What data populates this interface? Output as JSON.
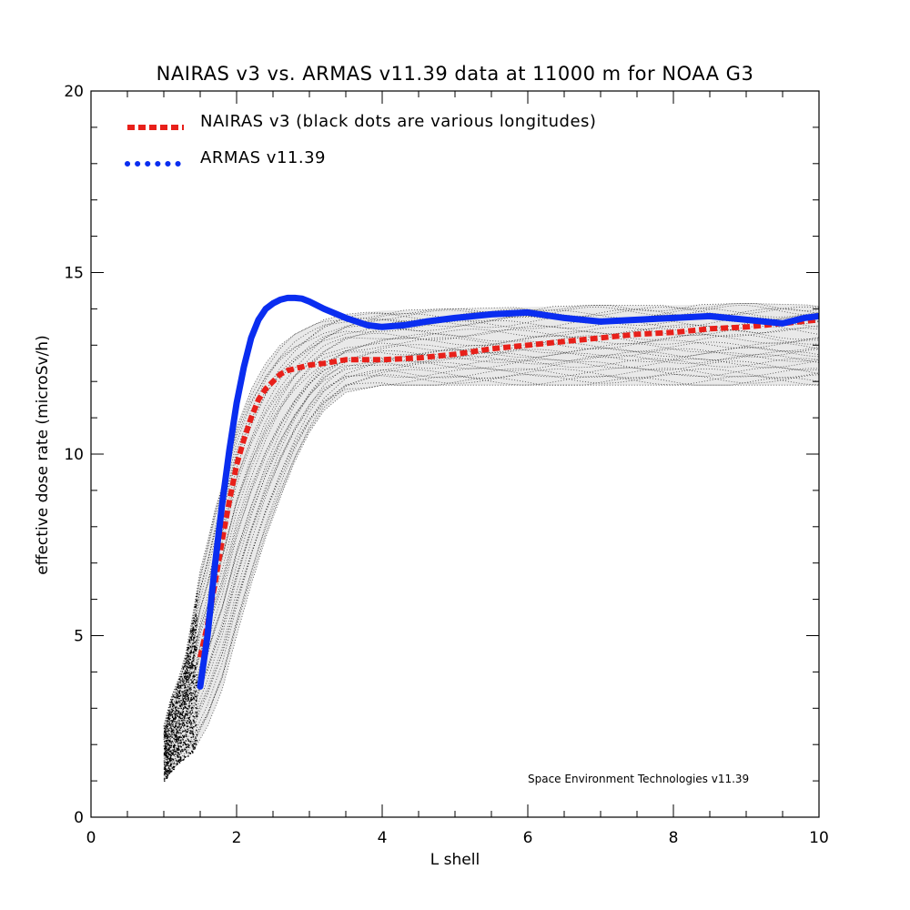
{
  "chart_data": {
    "type": "line",
    "title": "NAIRAS  v3 vs. ARMAS v11.39 data at 11000 m for NOAA G3",
    "xlabel": "L shell",
    "ylabel": "effective dose rate (microSv/h)",
    "xlim": [
      0,
      10
    ],
    "ylim": [
      0,
      20
    ],
    "xticks": [
      0,
      2,
      4,
      6,
      8,
      10
    ],
    "yticks": [
      0,
      5,
      10,
      15,
      20
    ],
    "grid": false,
    "legend_position": "top-left",
    "credit": "Space Environment Technologies v11.39",
    "series": [
      {
        "name": "NAIRAS v3 (black dots are various longitudes)",
        "style": "dashed",
        "color": "#e8201a",
        "x": [
          1.5,
          1.6,
          1.7,
          1.8,
          1.9,
          2.0,
          2.1,
          2.2,
          2.3,
          2.4,
          2.5,
          2.6,
          2.7,
          2.8,
          2.9,
          3.0,
          3.2,
          3.5,
          4.0,
          4.5,
          5.0,
          5.5,
          6.0,
          6.5,
          7.0,
          7.5,
          8.0,
          8.5,
          9.0,
          9.5,
          10.0
        ],
        "y": [
          4.4,
          5.3,
          6.4,
          7.6,
          8.7,
          9.7,
          10.4,
          11.0,
          11.5,
          11.8,
          12.0,
          12.2,
          12.3,
          12.35,
          12.4,
          12.45,
          12.5,
          12.6,
          12.6,
          12.65,
          12.75,
          12.9,
          13.0,
          13.1,
          13.2,
          13.3,
          13.35,
          13.45,
          13.5,
          13.6,
          13.7
        ]
      },
      {
        "name": "ARMAS v11.39",
        "style": "dotted",
        "color": "#0a2df0",
        "x": [
          1.5,
          1.6,
          1.7,
          1.8,
          1.9,
          2.0,
          2.1,
          2.2,
          2.3,
          2.4,
          2.5,
          2.6,
          2.7,
          2.8,
          2.9,
          3.0,
          3.2,
          3.5,
          3.8,
          4.0,
          4.3,
          4.6,
          5.0,
          5.5,
          6.0,
          6.5,
          7.0,
          7.5,
          8.0,
          8.5,
          9.0,
          9.5,
          9.8,
          10.0
        ],
        "y": [
          3.6,
          5.0,
          6.9,
          8.6,
          10.1,
          11.4,
          12.4,
          13.2,
          13.7,
          14.0,
          14.15,
          14.25,
          14.3,
          14.3,
          14.28,
          14.2,
          14.0,
          13.75,
          13.55,
          13.5,
          13.55,
          13.65,
          13.75,
          13.85,
          13.9,
          13.75,
          13.65,
          13.7,
          13.75,
          13.8,
          13.7,
          13.6,
          13.75,
          13.8
        ]
      }
    ],
    "scatter_cloud": {
      "name": "various longitudes",
      "color": "#000000",
      "upper_x": [
        1.0,
        1.1,
        1.2,
        1.3,
        1.4,
        1.5,
        1.6,
        1.7,
        1.8,
        1.9,
        2.0,
        2.2,
        2.4,
        2.6,
        2.8,
        3.0,
        3.2,
        3.5,
        4.0,
        5.0,
        6.0,
        7.0,
        8.0,
        9.0,
        10.0
      ],
      "upper_y": [
        2.5,
        3.3,
        3.8,
        4.5,
        5.6,
        6.8,
        7.6,
        8.5,
        9.2,
        10.0,
        10.8,
        11.8,
        12.5,
        13.0,
        13.3,
        13.5,
        13.7,
        13.85,
        13.95,
        14.0,
        14.05,
        14.1,
        14.1,
        14.15,
        14.1
      ],
      "lower_x": [
        1.0,
        1.2,
        1.4,
        1.6,
        1.8,
        2.0,
        2.2,
        2.4,
        2.6,
        2.8,
        3.0,
        3.2,
        3.5,
        4.0,
        5.0,
        6.0,
        7.0,
        8.0,
        9.0,
        10.0
      ],
      "lower_y": [
        1.0,
        1.5,
        1.8,
        2.5,
        3.5,
        5.0,
        6.4,
        7.7,
        8.8,
        9.8,
        10.6,
        11.2,
        11.7,
        11.9,
        11.9,
        11.9,
        11.9,
        11.9,
        11.9,
        11.9
      ]
    }
  }
}
